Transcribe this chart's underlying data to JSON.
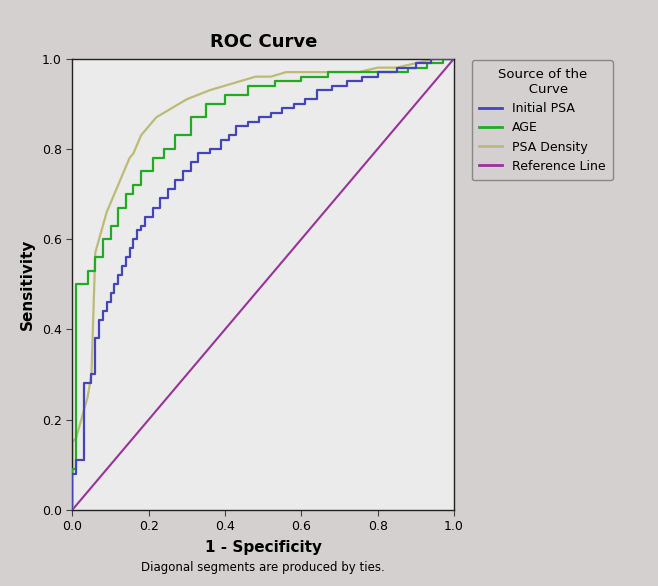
{
  "title": "ROC Curve",
  "xlabel": "1 - Specificity",
  "ylabel": "Sensitivity",
  "footnote": "Diagonal segments are produced by ties.",
  "plot_bg_color": "#ebebeb",
  "outer_bg_color": "#d4d0d0",
  "legend_title": "Source of the\n   Curve",
  "legend_entries": [
    "Initial PSA",
    "AGE",
    "PSA Density",
    "Reference Line"
  ],
  "colors": {
    "initial_psa": "#4444bb",
    "age": "#22aa22",
    "psa_density": "#bbbb77",
    "reference": "#993399"
  },
  "initial_psa_x": [
    0.0,
    0.0,
    0.01,
    0.01,
    0.03,
    0.03,
    0.05,
    0.05,
    0.06,
    0.06,
    0.07,
    0.07,
    0.08,
    0.08,
    0.09,
    0.09,
    0.1,
    0.1,
    0.11,
    0.11,
    0.12,
    0.12,
    0.13,
    0.13,
    0.14,
    0.14,
    0.15,
    0.15,
    0.16,
    0.16,
    0.17,
    0.17,
    0.18,
    0.18,
    0.19,
    0.19,
    0.21,
    0.21,
    0.23,
    0.23,
    0.25,
    0.25,
    0.27,
    0.27,
    0.29,
    0.29,
    0.31,
    0.31,
    0.33,
    0.33,
    0.36,
    0.36,
    0.39,
    0.39,
    0.41,
    0.41,
    0.43,
    0.43,
    0.46,
    0.46,
    0.49,
    0.49,
    0.52,
    0.52,
    0.55,
    0.55,
    0.58,
    0.58,
    0.61,
    0.61,
    0.64,
    0.64,
    0.68,
    0.68,
    0.72,
    0.72,
    0.76,
    0.76,
    0.8,
    0.8,
    0.85,
    0.85,
    0.9,
    0.9,
    0.94,
    0.94,
    0.97,
    0.97,
    1.0
  ],
  "initial_psa_y": [
    0.0,
    0.08,
    0.08,
    0.11,
    0.11,
    0.28,
    0.28,
    0.3,
    0.3,
    0.38,
    0.38,
    0.42,
    0.42,
    0.44,
    0.44,
    0.46,
    0.46,
    0.48,
    0.48,
    0.5,
    0.5,
    0.52,
    0.52,
    0.54,
    0.54,
    0.56,
    0.56,
    0.58,
    0.58,
    0.6,
    0.6,
    0.62,
    0.62,
    0.63,
    0.63,
    0.65,
    0.65,
    0.67,
    0.67,
    0.69,
    0.69,
    0.71,
    0.71,
    0.73,
    0.73,
    0.75,
    0.75,
    0.77,
    0.77,
    0.79,
    0.79,
    0.8,
    0.8,
    0.82,
    0.82,
    0.83,
    0.83,
    0.85,
    0.85,
    0.86,
    0.86,
    0.87,
    0.87,
    0.88,
    0.88,
    0.89,
    0.89,
    0.9,
    0.9,
    0.91,
    0.91,
    0.93,
    0.93,
    0.94,
    0.94,
    0.95,
    0.95,
    0.96,
    0.96,
    0.97,
    0.97,
    0.98,
    0.98,
    0.99,
    0.99,
    1.0,
    1.0,
    1.0,
    1.0
  ],
  "age_x": [
    0.0,
    0.0,
    0.01,
    0.01,
    0.04,
    0.04,
    0.06,
    0.06,
    0.08,
    0.08,
    0.1,
    0.1,
    0.12,
    0.12,
    0.14,
    0.14,
    0.16,
    0.16,
    0.18,
    0.18,
    0.21,
    0.21,
    0.24,
    0.24,
    0.27,
    0.27,
    0.31,
    0.31,
    0.35,
    0.35,
    0.4,
    0.4,
    0.46,
    0.46,
    0.53,
    0.53,
    0.6,
    0.6,
    0.67,
    0.67,
    0.74,
    0.74,
    0.81,
    0.81,
    0.88,
    0.88,
    0.93,
    0.93,
    0.97,
    0.97,
    1.0
  ],
  "age_y": [
    0.0,
    0.09,
    0.09,
    0.5,
    0.5,
    0.53,
    0.53,
    0.56,
    0.56,
    0.6,
    0.6,
    0.63,
    0.63,
    0.67,
    0.67,
    0.7,
    0.7,
    0.72,
    0.72,
    0.75,
    0.75,
    0.78,
    0.78,
    0.8,
    0.8,
    0.83,
    0.83,
    0.87,
    0.87,
    0.9,
    0.9,
    0.92,
    0.92,
    0.94,
    0.94,
    0.95,
    0.95,
    0.96,
    0.96,
    0.97,
    0.97,
    0.97,
    0.97,
    0.97,
    0.97,
    0.98,
    0.98,
    0.99,
    0.99,
    1.0,
    1.0
  ],
  "psa_density_x": [
    0.0,
    0.0,
    0.01,
    0.02,
    0.03,
    0.04,
    0.05,
    0.06,
    0.07,
    0.08,
    0.09,
    0.1,
    0.11,
    0.12,
    0.13,
    0.14,
    0.15,
    0.16,
    0.17,
    0.18,
    0.2,
    0.22,
    0.24,
    0.26,
    0.28,
    0.3,
    0.33,
    0.36,
    0.4,
    0.44,
    0.48,
    0.52,
    0.56,
    0.6,
    0.65,
    0.7,
    0.75,
    0.8,
    0.85,
    0.9,
    0.95,
    1.0
  ],
  "psa_density_y": [
    0.0,
    0.15,
    0.16,
    0.19,
    0.22,
    0.25,
    0.3,
    0.57,
    0.6,
    0.63,
    0.66,
    0.68,
    0.7,
    0.72,
    0.74,
    0.76,
    0.78,
    0.79,
    0.81,
    0.83,
    0.85,
    0.87,
    0.88,
    0.89,
    0.9,
    0.91,
    0.92,
    0.93,
    0.94,
    0.95,
    0.96,
    0.96,
    0.97,
    0.97,
    0.97,
    0.97,
    0.97,
    0.98,
    0.98,
    0.99,
    1.0,
    1.0
  ],
  "xlim": [
    0.0,
    1.0
  ],
  "ylim": [
    0.0,
    1.0
  ],
  "xticks": [
    0.0,
    0.2,
    0.4,
    0.6,
    0.8,
    1.0
  ],
  "yticks": [
    0.0,
    0.2,
    0.4,
    0.6,
    0.8,
    1.0
  ]
}
